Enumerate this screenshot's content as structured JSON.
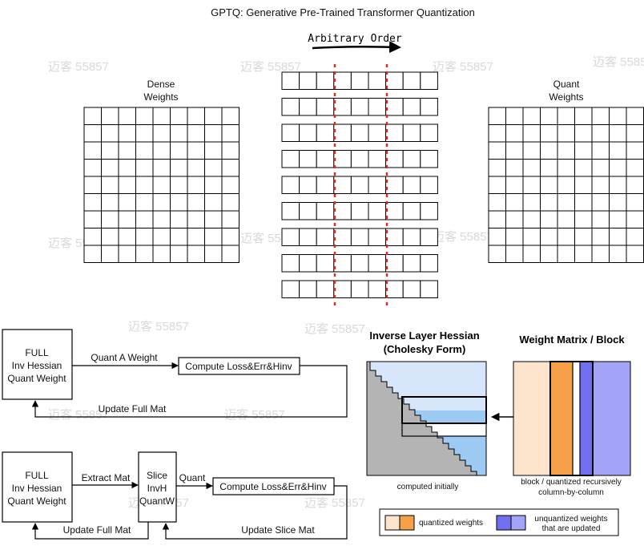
{
  "title": "GPTQ: Generative Pre-Trained Transformer Quantization",
  "watermark": "迈客 55857",
  "top": {
    "order_label": "Arbitrary Order",
    "dense_label_1": "Dense",
    "dense_label_2": "Weights",
    "quant_label_1": "Quant",
    "quant_label_2": "Weights"
  },
  "flow1": {
    "box_line1": "FULL",
    "box_line2": "Inv Hessian",
    "box_line3": "Quant Weight",
    "quant_label": "Quant A Weight",
    "compute_label": "Compute Loss&Err&Hinv",
    "update_label": "Update Full Mat"
  },
  "flow2": {
    "box_line1": "FULL",
    "box_line2": "Inv Hessian",
    "box_line3": "Quant Weight",
    "extract_label": "Extract Mat",
    "slice_line1": "Slice",
    "slice_line2": "InvH",
    "slice_line3": "QuantW",
    "quant_label": "Quant",
    "compute_label": "Compute Loss&Err&Hinv",
    "update_full_label": "Update Full Mat",
    "update_slice_label": "Update Slice Mat"
  },
  "hessian": {
    "title_1": "Inverse Layer Hessian",
    "title_2": "(Cholesky Form)",
    "caption": "computed initially"
  },
  "weights": {
    "title": "Weight Matrix / Block",
    "caption_1": "block / quantized recursively",
    "caption_2": "column-by-column"
  },
  "legend": {
    "quantized_label": "quantized weights",
    "unquantized_label_1": "unquantized weights",
    "unquantized_label_2": "that are updated"
  },
  "colors": {
    "peach": "#fbe3cc",
    "orange": "#f7a04a",
    "light_blue": "#d7e6fb",
    "blue_band": "#9dcaf2",
    "gray": "#b4b4b4",
    "indigo": "#6f6fef",
    "lavender": "#a3a3f7",
    "red_dash": "#e02c1f"
  }
}
